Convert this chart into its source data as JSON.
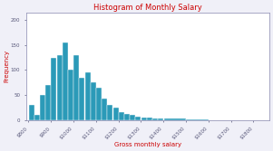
{
  "title": "Histogram of Monthly Salary",
  "xlabel": "Gross monthly salary",
  "ylabel": "Frequency",
  "title_color": "#cc0000",
  "xlabel_color": "#cc0000",
  "ylabel_color": "#cc0000",
  "bar_color": "#2b9ab8",
  "bar_edge_color": "white",
  "xlim": [
    790,
    1870
  ],
  "ylim": [
    0,
    215
  ],
  "yticks": [
    0,
    50,
    100,
    150,
    200
  ],
  "xtick_labels": [
    "$800",
    "$900",
    "$1000",
    "$1100",
    "$1200",
    "$1300",
    "$1400",
    "$1500",
    "$1600",
    "$1700",
    "$1800"
  ],
  "xtick_values": [
    800,
    900,
    1000,
    1100,
    1200,
    1300,
    1400,
    1500,
    1600,
    1700,
    1800
  ],
  "bin_edges": [
    800,
    825,
    850,
    875,
    900,
    925,
    950,
    975,
    1000,
    1025,
    1050,
    1075,
    1100,
    1125,
    1150,
    1175,
    1200,
    1225,
    1250,
    1275,
    1300,
    1325,
    1350,
    1375,
    1400,
    1500,
    1600
  ],
  "frequencies": [
    30,
    10,
    50,
    70,
    125,
    130,
    155,
    100,
    130,
    85,
    95,
    75,
    65,
    42,
    30,
    25,
    15,
    12,
    10,
    6,
    4,
    4,
    3,
    2,
    2,
    1
  ],
  "background_color": "#f0f0f8",
  "spine_color": "#9999bb",
  "tick_color": "#555577"
}
